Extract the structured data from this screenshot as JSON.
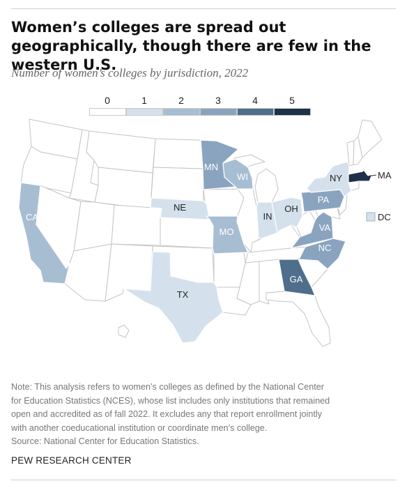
{
  "header": {
    "title": "Women’s colleges are spread out geographically, though there are few in the western U.S.",
    "subtitle": "Number of women’s colleges by jurisdiction, 2022"
  },
  "legend": {
    "items": [
      {
        "label": "0",
        "color": "#ffffff"
      },
      {
        "label": "1",
        "color": "#d4e1ec"
      },
      {
        "label": "2",
        "color": "#a7bdd2"
      },
      {
        "label": "3",
        "color": "#8aa4c0"
      },
      {
        "label": "4",
        "color": "#4f6e8c"
      },
      {
        "label": "5",
        "color": "#1e3149"
      }
    ]
  },
  "chart_data": {
    "type": "choropleth",
    "categories": [
      "0",
      "1",
      "2",
      "3",
      "4",
      "5"
    ],
    "regions": [
      {
        "name": "NE",
        "value": 1
      },
      {
        "name": "TX",
        "value": 1
      },
      {
        "name": "IN",
        "value": 1
      },
      {
        "name": "OH",
        "value": 1
      },
      {
        "name": "NY",
        "value": 1
      },
      {
        "name": "DC",
        "value": 1
      },
      {
        "name": "CA",
        "value": 2
      },
      {
        "name": "MO",
        "value": 2
      },
      {
        "name": "WI",
        "value": 2
      },
      {
        "name": "MN",
        "value": 3
      },
      {
        "name": "PA",
        "value": 3
      },
      {
        "name": "VA",
        "value": 3
      },
      {
        "name": "NC",
        "value": 3
      },
      {
        "name": "GA",
        "value": 4
      },
      {
        "name": "MA",
        "value": 5
      }
    ]
  },
  "note": {
    "lines": [
      "Note: This analysis refers to women’s colleges as defined by the National Center",
      "for Education Statistics (NCES), whose list includes only institutions that remained",
      "open and accredited as of fall 2022. It excludes any that report enrollment jointly",
      "with another coeducational institution or coordinate men’s college.",
      "Source: National Center for Education Statistics."
    ]
  },
  "footer": {
    "brand": "PEW RESEARCH CENTER"
  }
}
